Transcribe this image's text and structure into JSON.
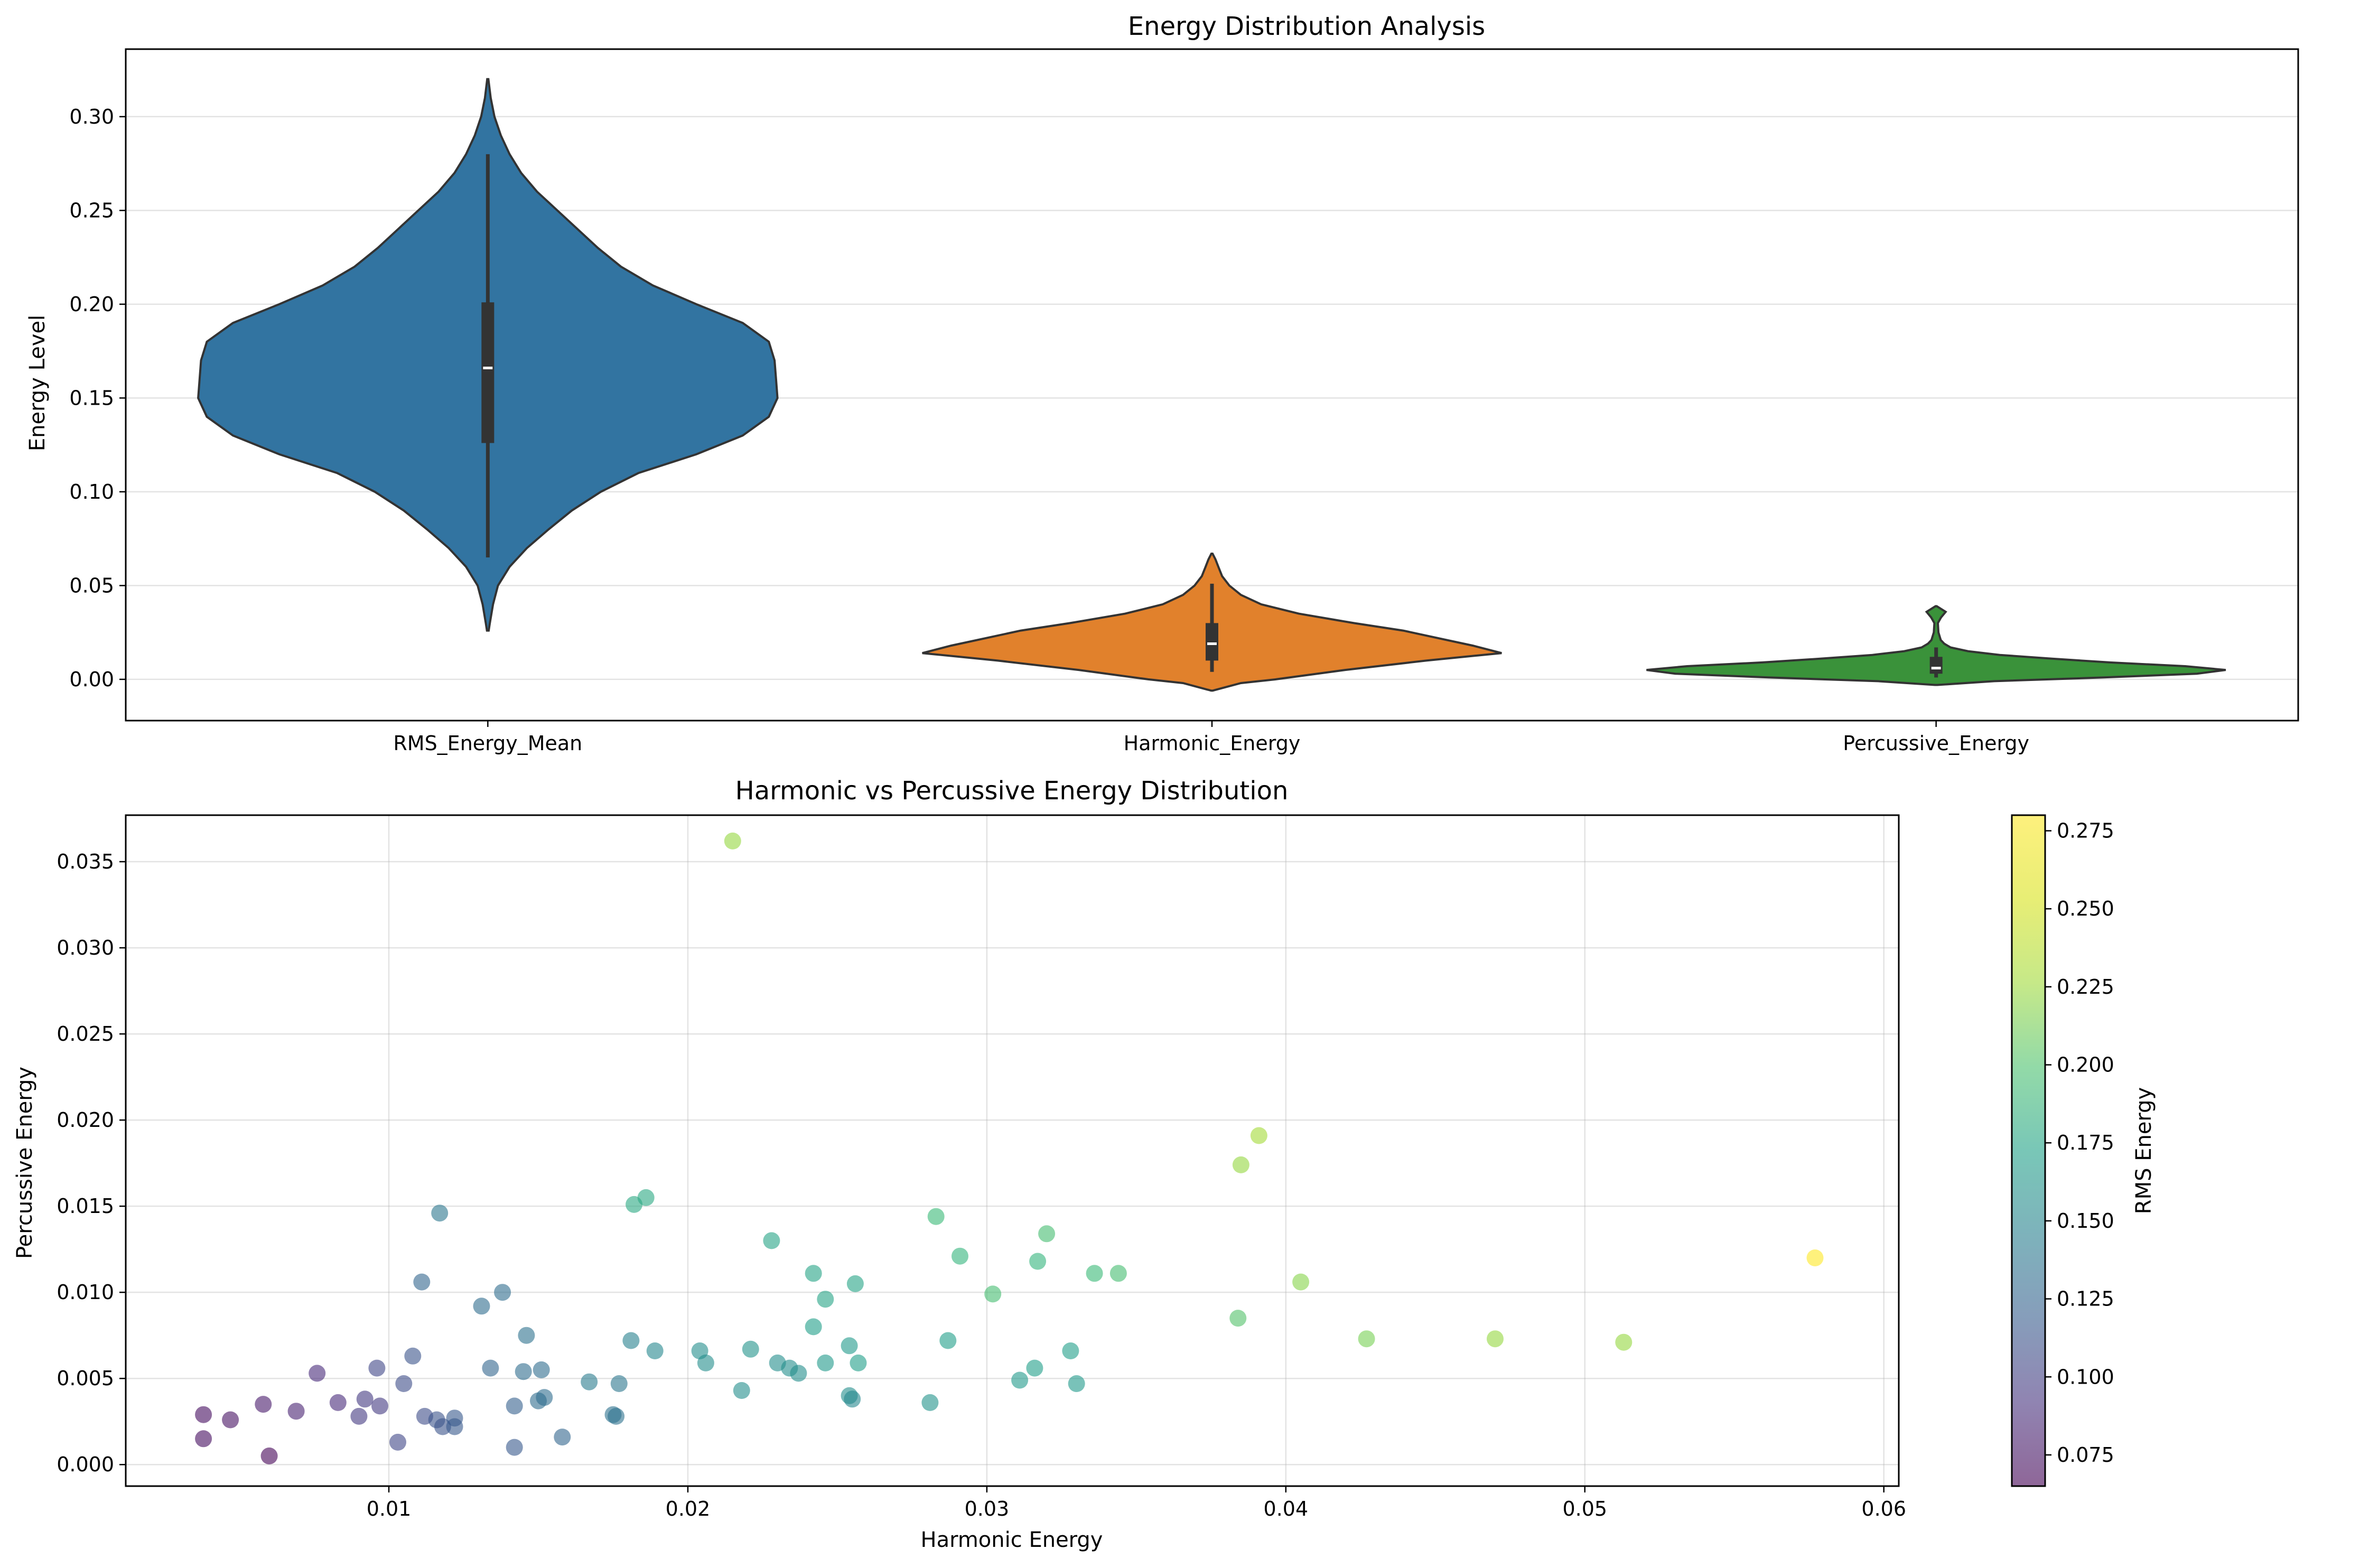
{
  "chart_data": [
    {
      "type": "violin",
      "title": "Energy Distribution Analysis",
      "xlabel": "",
      "ylabel": "Energy Level",
      "categories": [
        "RMS_Energy_Mean",
        "Harmonic_Energy",
        "Percussive_Energy"
      ],
      "colors": [
        "#3274a1",
        "#e1812c",
        "#3a923a"
      ],
      "ylim": [
        -0.022,
        0.336
      ],
      "yticks": [
        0.0,
        0.05,
        0.1,
        0.15,
        0.2,
        0.25,
        0.3
      ],
      "ytick_labels": [
        "0.00",
        "0.05",
        "0.10",
        "0.15",
        "0.20",
        "0.25",
        "0.30"
      ],
      "grid": "y",
      "violins": [
        {
          "name": "RMS_Energy_Mean",
          "min": 0.065,
          "q1": 0.126,
          "median": 0.166,
          "q3": 0.201,
          "max": 0.28,
          "profile": [
            [
              0.026,
              0.003
            ],
            [
              0.03,
              0.007
            ],
            [
              0.04,
              0.018
            ],
            [
              0.05,
              0.035
            ],
            [
              0.06,
              0.075
            ],
            [
              0.07,
              0.135
            ],
            [
              0.08,
              0.21
            ],
            [
              0.09,
              0.29
            ],
            [
              0.1,
              0.39
            ],
            [
              0.11,
              0.52
            ],
            [
              0.12,
              0.72
            ],
            [
              0.13,
              0.88
            ],
            [
              0.14,
              0.97
            ],
            [
              0.15,
              1.0
            ],
            [
              0.16,
              0.995
            ],
            [
              0.17,
              0.99
            ],
            [
              0.18,
              0.97
            ],
            [
              0.19,
              0.88
            ],
            [
              0.2,
              0.72
            ],
            [
              0.21,
              0.57
            ],
            [
              0.22,
              0.46
            ],
            [
              0.23,
              0.38
            ],
            [
              0.24,
              0.31
            ],
            [
              0.25,
              0.24
            ],
            [
              0.26,
              0.17
            ],
            [
              0.27,
              0.115
            ],
            [
              0.28,
              0.075
            ],
            [
              0.29,
              0.045
            ],
            [
              0.3,
              0.023
            ],
            [
              0.31,
              0.01
            ],
            [
              0.32,
              0.002
            ]
          ]
        },
        {
          "name": "Harmonic_Energy",
          "min": 0.004,
          "q1": 0.01,
          "median": 0.019,
          "q3": 0.03,
          "max": 0.051,
          "profile": [
            [
              -0.006,
              0.003
            ],
            [
              -0.002,
              0.1
            ],
            [
              0.0,
              0.22
            ],
            [
              0.005,
              0.46
            ],
            [
              0.01,
              0.74
            ],
            [
              0.014,
              1.0
            ],
            [
              0.018,
              0.9
            ],
            [
              0.022,
              0.78
            ],
            [
              0.026,
              0.66
            ],
            [
              0.03,
              0.49
            ],
            [
              0.035,
              0.3
            ],
            [
              0.04,
              0.17
            ],
            [
              0.045,
              0.1
            ],
            [
              0.05,
              0.06
            ],
            [
              0.055,
              0.035
            ],
            [
              0.06,
              0.022
            ],
            [
              0.064,
              0.012
            ],
            [
              0.067,
              0.002
            ]
          ]
        },
        {
          "name": "Percussive_Energy",
          "min": 0.001,
          "q1": 0.003,
          "median": 0.006,
          "q3": 0.012,
          "max": 0.017,
          "profile": [
            [
              -0.003,
              0.004
            ],
            [
              -0.001,
              0.2
            ],
            [
              0.001,
              0.58
            ],
            [
              0.003,
              0.9
            ],
            [
              0.005,
              1.0
            ],
            [
              0.007,
              0.86
            ],
            [
              0.009,
              0.6
            ],
            [
              0.011,
              0.4
            ],
            [
              0.013,
              0.22
            ],
            [
              0.015,
              0.11
            ],
            [
              0.017,
              0.05
            ],
            [
              0.019,
              0.028
            ],
            [
              0.021,
              0.016
            ],
            [
              0.025,
              0.008
            ],
            [
              0.03,
              0.006
            ],
            [
              0.033,
              0.017
            ],
            [
              0.036,
              0.033
            ],
            [
              0.039,
              0.002
            ]
          ]
        }
      ]
    },
    {
      "type": "scatter",
      "title": "Harmonic vs Percussive Energy Distribution",
      "xlabel": "Harmonic Energy",
      "ylabel": "Percussive Energy",
      "xlim": [
        0.0012,
        0.0605
      ],
      "ylim": [
        -0.00125,
        0.0377
      ],
      "xticks": [
        0.01,
        0.02,
        0.03,
        0.04,
        0.05,
        0.06
      ],
      "xtick_labels": [
        "0.01",
        "0.02",
        "0.03",
        "0.04",
        "0.05",
        "0.06"
      ],
      "yticks": [
        0.0,
        0.005,
        0.01,
        0.015,
        0.02,
        0.025,
        0.03,
        0.035
      ],
      "ytick_labels": [
        "0.000",
        "0.005",
        "0.010",
        "0.015",
        "0.020",
        "0.025",
        "0.030",
        "0.035"
      ],
      "grid": "both",
      "colorbar": {
        "label": "RMS Energy",
        "colormap": "viridis",
        "range": [
          0.065,
          0.28
        ],
        "ticks": [
          0.075,
          0.1,
          0.125,
          0.15,
          0.175,
          0.2,
          0.225,
          0.25,
          0.275
        ],
        "tick_labels": [
          "0.075",
          "0.100",
          "0.125",
          "0.150",
          "0.175",
          "0.200",
          "0.225",
          "0.250",
          "0.275"
        ]
      },
      "points": [
        {
          "x": 0.0038,
          "y": 0.0029,
          "c": 0.072
        },
        {
          "x": 0.0038,
          "y": 0.0015,
          "c": 0.072
        },
        {
          "x": 0.0047,
          "y": 0.0026,
          "c": 0.075
        },
        {
          "x": 0.0058,
          "y": 0.0035,
          "c": 0.08
        },
        {
          "x": 0.006,
          "y": 0.0005,
          "c": 0.066
        },
        {
          "x": 0.0069,
          "y": 0.0031,
          "c": 0.085
        },
        {
          "x": 0.0076,
          "y": 0.0053,
          "c": 0.09
        },
        {
          "x": 0.0083,
          "y": 0.0036,
          "c": 0.09
        },
        {
          "x": 0.009,
          "y": 0.0028,
          "c": 0.1
        },
        {
          "x": 0.0092,
          "y": 0.0038,
          "c": 0.1
        },
        {
          "x": 0.0096,
          "y": 0.0056,
          "c": 0.11
        },
        {
          "x": 0.0097,
          "y": 0.0034,
          "c": 0.1
        },
        {
          "x": 0.0103,
          "y": 0.0013,
          "c": 0.11
        },
        {
          "x": 0.0105,
          "y": 0.0047,
          "c": 0.115
        },
        {
          "x": 0.0108,
          "y": 0.0063,
          "c": 0.12
        },
        {
          "x": 0.0111,
          "y": 0.0106,
          "c": 0.135
        },
        {
          "x": 0.0112,
          "y": 0.0028,
          "c": 0.115
        },
        {
          "x": 0.0116,
          "y": 0.0026,
          "c": 0.12
        },
        {
          "x": 0.0117,
          "y": 0.0146,
          "c": 0.15
        },
        {
          "x": 0.0118,
          "y": 0.0022,
          "c": 0.12
        },
        {
          "x": 0.0122,
          "y": 0.0027,
          "c": 0.125
        },
        {
          "x": 0.0122,
          "y": 0.0022,
          "c": 0.125
        },
        {
          "x": 0.0131,
          "y": 0.0092,
          "c": 0.14
        },
        {
          "x": 0.0134,
          "y": 0.0056,
          "c": 0.135
        },
        {
          "x": 0.0138,
          "y": 0.01,
          "c": 0.14
        },
        {
          "x": 0.0142,
          "y": 0.0034,
          "c": 0.13
        },
        {
          "x": 0.0142,
          "y": 0.001,
          "c": 0.125
        },
        {
          "x": 0.0145,
          "y": 0.0054,
          "c": 0.14
        },
        {
          "x": 0.0146,
          "y": 0.0075,
          "c": 0.145
        },
        {
          "x": 0.015,
          "y": 0.0037,
          "c": 0.14
        },
        {
          "x": 0.0151,
          "y": 0.0055,
          "c": 0.14
        },
        {
          "x": 0.0152,
          "y": 0.0039,
          "c": 0.14
        },
        {
          "x": 0.0158,
          "y": 0.0016,
          "c": 0.135
        },
        {
          "x": 0.0167,
          "y": 0.0048,
          "c": 0.155
        },
        {
          "x": 0.0175,
          "y": 0.0029,
          "c": 0.145
        },
        {
          "x": 0.0176,
          "y": 0.0028,
          "c": 0.145
        },
        {
          "x": 0.0177,
          "y": 0.0047,
          "c": 0.15
        },
        {
          "x": 0.0181,
          "y": 0.0072,
          "c": 0.16
        },
        {
          "x": 0.0182,
          "y": 0.0151,
          "c": 0.195
        },
        {
          "x": 0.0186,
          "y": 0.0155,
          "c": 0.195
        },
        {
          "x": 0.0189,
          "y": 0.0066,
          "c": 0.165
        },
        {
          "x": 0.0204,
          "y": 0.0066,
          "c": 0.17
        },
        {
          "x": 0.0206,
          "y": 0.0059,
          "c": 0.17
        },
        {
          "x": 0.0215,
          "y": 0.0362,
          "c": 0.245
        },
        {
          "x": 0.0218,
          "y": 0.0043,
          "c": 0.17
        },
        {
          "x": 0.0221,
          "y": 0.0067,
          "c": 0.175
        },
        {
          "x": 0.0228,
          "y": 0.013,
          "c": 0.19
        },
        {
          "x": 0.023,
          "y": 0.0059,
          "c": 0.17
        },
        {
          "x": 0.0234,
          "y": 0.0056,
          "c": 0.17
        },
        {
          "x": 0.0237,
          "y": 0.0053,
          "c": 0.17
        },
        {
          "x": 0.0242,
          "y": 0.0111,
          "c": 0.19
        },
        {
          "x": 0.0242,
          "y": 0.008,
          "c": 0.185
        },
        {
          "x": 0.0246,
          "y": 0.0096,
          "c": 0.19
        },
        {
          "x": 0.0246,
          "y": 0.0059,
          "c": 0.18
        },
        {
          "x": 0.0254,
          "y": 0.0069,
          "c": 0.18
        },
        {
          "x": 0.0254,
          "y": 0.004,
          "c": 0.17
        },
        {
          "x": 0.0255,
          "y": 0.0038,
          "c": 0.165
        },
        {
          "x": 0.0256,
          "y": 0.0105,
          "c": 0.19
        },
        {
          "x": 0.0257,
          "y": 0.0059,
          "c": 0.185
        },
        {
          "x": 0.0281,
          "y": 0.0036,
          "c": 0.175
        },
        {
          "x": 0.0283,
          "y": 0.0144,
          "c": 0.21
        },
        {
          "x": 0.0287,
          "y": 0.0072,
          "c": 0.185
        },
        {
          "x": 0.0291,
          "y": 0.0121,
          "c": 0.205
        },
        {
          "x": 0.0302,
          "y": 0.0099,
          "c": 0.215
        },
        {
          "x": 0.0311,
          "y": 0.0049,
          "c": 0.18
        },
        {
          "x": 0.0316,
          "y": 0.0056,
          "c": 0.185
        },
        {
          "x": 0.0317,
          "y": 0.0118,
          "c": 0.205
        },
        {
          "x": 0.032,
          "y": 0.0134,
          "c": 0.215
        },
        {
          "x": 0.0328,
          "y": 0.0066,
          "c": 0.185
        },
        {
          "x": 0.033,
          "y": 0.0047,
          "c": 0.18
        },
        {
          "x": 0.0336,
          "y": 0.0111,
          "c": 0.21
        },
        {
          "x": 0.0344,
          "y": 0.0111,
          "c": 0.215
        },
        {
          "x": 0.0384,
          "y": 0.0085,
          "c": 0.22
        },
        {
          "x": 0.0385,
          "y": 0.0174,
          "c": 0.245
        },
        {
          "x": 0.0391,
          "y": 0.0191,
          "c": 0.25
        },
        {
          "x": 0.0405,
          "y": 0.0106,
          "c": 0.24
        },
        {
          "x": 0.0427,
          "y": 0.0073,
          "c": 0.235
        },
        {
          "x": 0.047,
          "y": 0.0073,
          "c": 0.245
        },
        {
          "x": 0.0513,
          "y": 0.0071,
          "c": 0.245
        },
        {
          "x": 0.0577,
          "y": 0.012,
          "c": 0.28
        }
      ]
    }
  ]
}
